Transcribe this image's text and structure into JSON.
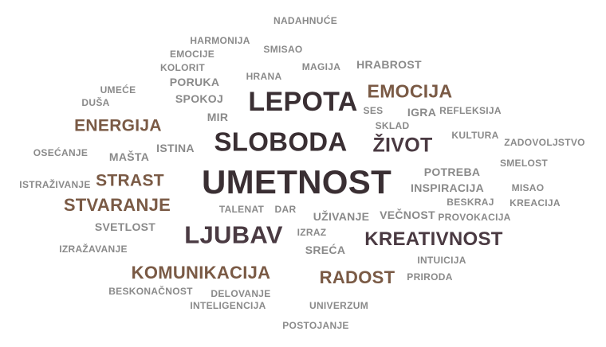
{
  "words": [
    {
      "text": "NADAHNUĆE",
      "tone": "grey"
    },
    {
      "text": "HARMONIJA",
      "tone": "grey"
    },
    {
      "text": "SMISAO",
      "tone": "grey"
    },
    {
      "text": "EMOCIJE",
      "tone": "grey"
    },
    {
      "text": "KOLORIT",
      "tone": "grey"
    },
    {
      "text": "MAGIJA",
      "tone": "grey"
    },
    {
      "text": "HRABROST",
      "tone": "grey"
    },
    {
      "text": "PORUKA",
      "tone": "grey"
    },
    {
      "text": "HRANA",
      "tone": "grey"
    },
    {
      "text": "UMEĆE",
      "tone": "grey"
    },
    {
      "text": "LEPOTA",
      "tone": "dark"
    },
    {
      "text": "EMOCIJA",
      "tone": "brown"
    },
    {
      "text": "DUŠA",
      "tone": "grey"
    },
    {
      "text": "SPOKOJ",
      "tone": "grey"
    },
    {
      "text": "SES",
      "tone": "grey"
    },
    {
      "text": "IGRA",
      "tone": "grey"
    },
    {
      "text": "REFLEKSIJA",
      "tone": "grey"
    },
    {
      "text": "MIR",
      "tone": "grey"
    },
    {
      "text": "ENERGIJA",
      "tone": "brown"
    },
    {
      "text": "SKLAD",
      "tone": "grey"
    },
    {
      "text": "KULTURA",
      "tone": "grey"
    },
    {
      "text": "SLOBODA",
      "tone": "dark"
    },
    {
      "text": "ŽIVOT",
      "tone": "plum"
    },
    {
      "text": "ZADOVOLJSTVO",
      "tone": "grey"
    },
    {
      "text": "OSEĆANJE",
      "tone": "grey"
    },
    {
      "text": "ISTINA",
      "tone": "grey"
    },
    {
      "text": "MAŠTA",
      "tone": "grey"
    },
    {
      "text": "SMELOST",
      "tone": "grey"
    },
    {
      "text": "POTREBA",
      "tone": "grey"
    },
    {
      "text": "STRAST",
      "tone": "brown"
    },
    {
      "text": "UMETNOST",
      "tone": "dark"
    },
    {
      "text": "ISTRAŽIVANJE",
      "tone": "grey"
    },
    {
      "text": "INSPIRACIJA",
      "tone": "grey"
    },
    {
      "text": "MISAO",
      "tone": "grey"
    },
    {
      "text": "BESKRAJ",
      "tone": "grey"
    },
    {
      "text": "KREACIJA",
      "tone": "grey"
    },
    {
      "text": "STVARANJE",
      "tone": "brown"
    },
    {
      "text": "TALENAT",
      "tone": "grey"
    },
    {
      "text": "DAR",
      "tone": "grey"
    },
    {
      "text": "UŽIVANJE",
      "tone": "grey"
    },
    {
      "text": "VEČNOST",
      "tone": "grey"
    },
    {
      "text": "PROVOKACIJA",
      "tone": "grey"
    },
    {
      "text": "SVETLOST",
      "tone": "grey"
    },
    {
      "text": "LJUBAV",
      "tone": "plum"
    },
    {
      "text": "IZRAZ",
      "tone": "grey"
    },
    {
      "text": "KREATIVNOST",
      "tone": "plum"
    },
    {
      "text": "IZRAŽAVANJE",
      "tone": "grey"
    },
    {
      "text": "SREĆA",
      "tone": "grey"
    },
    {
      "text": "INTUICIJA",
      "tone": "grey"
    },
    {
      "text": "KOMUNIKACIJA",
      "tone": "brown"
    },
    {
      "text": "RADOST",
      "tone": "brown"
    },
    {
      "text": "PRIRODA",
      "tone": "grey"
    },
    {
      "text": "BESKONAČNOST",
      "tone": "grey"
    },
    {
      "text": "DELOVANJE",
      "tone": "grey"
    },
    {
      "text": "INTELIGENCIJA",
      "tone": "grey"
    },
    {
      "text": "UNIVERZUM",
      "tone": "grey"
    },
    {
      "text": "POSTOJANJE",
      "tone": "grey"
    }
  ]
}
